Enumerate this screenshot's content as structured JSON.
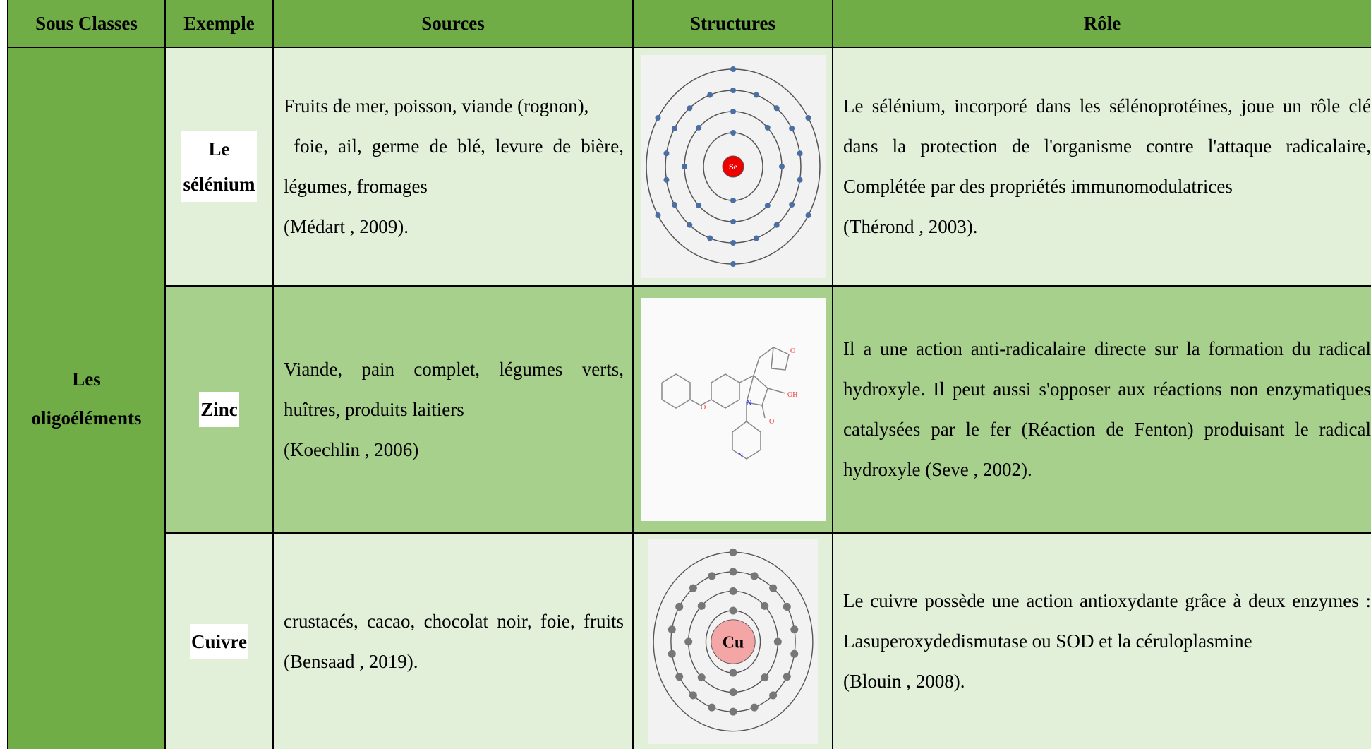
{
  "table": {
    "headers": [
      "Sous Classes",
      "Exemple",
      "Sources",
      "Structures",
      "Rôle"
    ],
    "subclass": [
      "Les",
      "oligoéléments"
    ],
    "rows": [
      {
        "example": [
          "Le",
          "sélénium"
        ],
        "sources": [
          "Fruits de mer, poisson, viande (rognon),",
          " foie, ail, germe de blé, levure de bière, légumes, fromages",
          "(Médart , 2009)."
        ],
        "structure_labels": [
          "Se"
        ],
        "role": [
          "Le sélénium, incorporé dans les sélénoprotéines, joue un rôle clé dans la protection de l'organisme contre l'attaque radicalaire, Complétée par des propriétés immunomodulatrices",
          "(Thérond , 2003)."
        ]
      },
      {
        "example": [
          "Zinc"
        ],
        "sources": [
          "Viande, pain complet, légumes verts, huîtres, produits laitiers",
          "(Koechlin , 2006)"
        ],
        "structure_labels": [
          "O",
          "O",
          "OH",
          "N",
          "O",
          "N"
        ],
        "role": [
          "Il a une action anti-radicalaire directe sur la formation du radical hydroxyle. Il peut aussi s'opposer aux réactions non enzymatiques catalysées par le fer (Réaction de Fenton) produisant le radical hydroxyle (Seve , 2002)."
        ]
      },
      {
        "example": [
          "Cuivre"
        ],
        "sources": [
          "crustacés, cacao, chocolat noir, foie, fruits (Bensaad , 2019)."
        ],
        "structure_labels": [
          "Cu"
        ],
        "role": [
          "Le cuivre possède une action antioxydante grâce à deux enzymes : Lasuperoxydedismutase ou SOD et la céruloplasmine",
          "(Blouin , 2008)."
        ]
      }
    ]
  }
}
